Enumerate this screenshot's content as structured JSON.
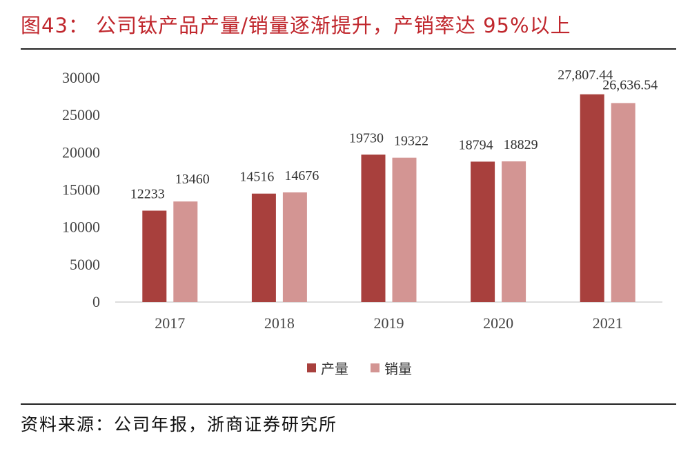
{
  "title": "图43：  公司钛产品产量/销量逐渐提升，产销率达 95%以上",
  "source": "资料来源：公司年报，浙商证券研究所",
  "chart_data": {
    "type": "bar",
    "categories": [
      "2017",
      "2018",
      "2019",
      "2020",
      "2021"
    ],
    "series": [
      {
        "name": "产量",
        "color": "#a8403d",
        "values": [
          12233,
          14516,
          19730,
          18794,
          27807.44
        ],
        "labels": [
          "12233",
          "14516",
          "19730",
          "18794",
          "27,807.44"
        ]
      },
      {
        "name": "销量",
        "color": "#d39593",
        "values": [
          13460,
          14676,
          19322,
          18829,
          26636.54
        ],
        "labels": [
          "13460",
          "14676",
          "19322",
          "18829",
          "26,636.54"
        ]
      }
    ],
    "ylim": [
      0,
      30000
    ],
    "yticks": [
      "0",
      "5000",
      "10000",
      "15000",
      "20000",
      "25000",
      "30000"
    ],
    "grid": false,
    "legend": "bottom"
  }
}
